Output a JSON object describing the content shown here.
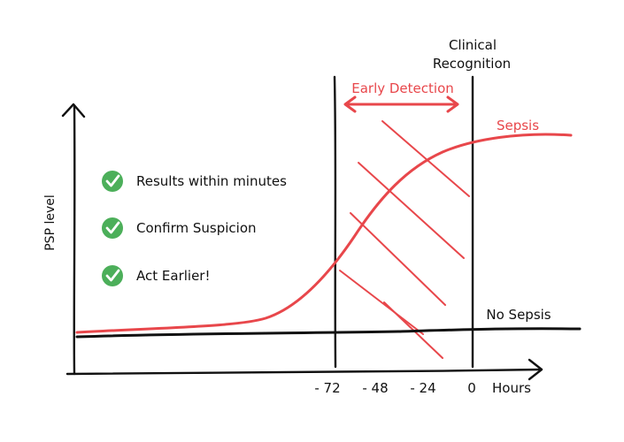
{
  "diagram": {
    "y_axis_label": "PSP level",
    "x_axis_unit": "Hours",
    "x_ticks": [
      "- 72",
      "- 48",
      "- 24",
      "0"
    ],
    "clinical_recognition_lines": [
      "Clinical",
      "Recognition"
    ],
    "early_detection_label": "Early Detection",
    "sepsis_label": "Sepsis",
    "no_sepsis_label": "No Sepsis",
    "benefits": [
      {
        "text": "Results within minutes",
        "icon": "check-circle-icon"
      },
      {
        "text": "Confirm Suspicion",
        "icon": "check-circle-icon"
      },
      {
        "text": "Act Earlier!",
        "icon": "check-circle-icon"
      }
    ],
    "colors": {
      "ink": "#111111",
      "sepsis_red": "#e8474b",
      "check_green": "#4caf5a"
    }
  }
}
